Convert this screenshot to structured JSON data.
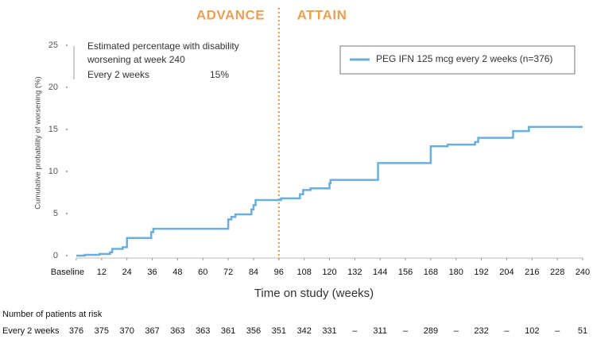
{
  "chart_data": {
    "type": "step",
    "phase_labels": [
      "ADVANCE",
      "ATTAIN"
    ],
    "divider_x": 96,
    "divider_color": "#e8963c",
    "xlabel": "Time on study (weeks)",
    "ylabel": "Cumulative probability of worsening (%)",
    "xlim": [
      0,
      240
    ],
    "xticks": [
      {
        "value": 0,
        "label": "Baseline"
      },
      12,
      24,
      36,
      48,
      60,
      72,
      84,
      96,
      108,
      120,
      132,
      144,
      156,
      168,
      180,
      192,
      204,
      216,
      228,
      240
    ],
    "ylim": [
      0,
      25
    ],
    "yticks": [
      0,
      5,
      10,
      15,
      20,
      25
    ],
    "legend": "upper right",
    "series": [
      {
        "name": "PEG IFN 125 mcg every 2 weeks (n=376)",
        "color": "#6aaedb",
        "x": [
          0,
          4,
          11,
          16,
          17,
          22,
          24,
          35.5,
          36.5,
          72,
          73.5,
          75.4,
          83,
          84,
          85,
          97,
          106,
          107.5,
          111,
          120,
          120.5,
          143,
          168,
          176,
          189,
          190.5,
          207,
          214.5,
          240
        ],
        "values": [
          0,
          0.1,
          0.2,
          0.4,
          0.8,
          1.0,
          2.1,
          2.8,
          3.2,
          4.3,
          4.6,
          4.9,
          5.5,
          6.0,
          6.6,
          6.8,
          7.3,
          7.8,
          8.0,
          8.6,
          9.0,
          11.0,
          13.0,
          13.2,
          13.5,
          14.0,
          14.8,
          15.3,
          15.3
        ]
      }
    ],
    "annotation": {
      "lines": [
        "Estimated percentage with disability",
        "worsening at week 240"
      ],
      "label": "Every 2 weeks",
      "value": 15,
      "value_label": "15%"
    }
  },
  "risk_table": {
    "title": "Number of patients at risk",
    "row_label": "Every 2 weeks",
    "values": [
      "376",
      "375",
      "370",
      "367",
      "363",
      "363",
      "361",
      "356",
      "351",
      "342",
      "331",
      "–",
      "311",
      "–",
      "289",
      "–",
      "232",
      "–",
      "102",
      "–",
      "51"
    ]
  }
}
